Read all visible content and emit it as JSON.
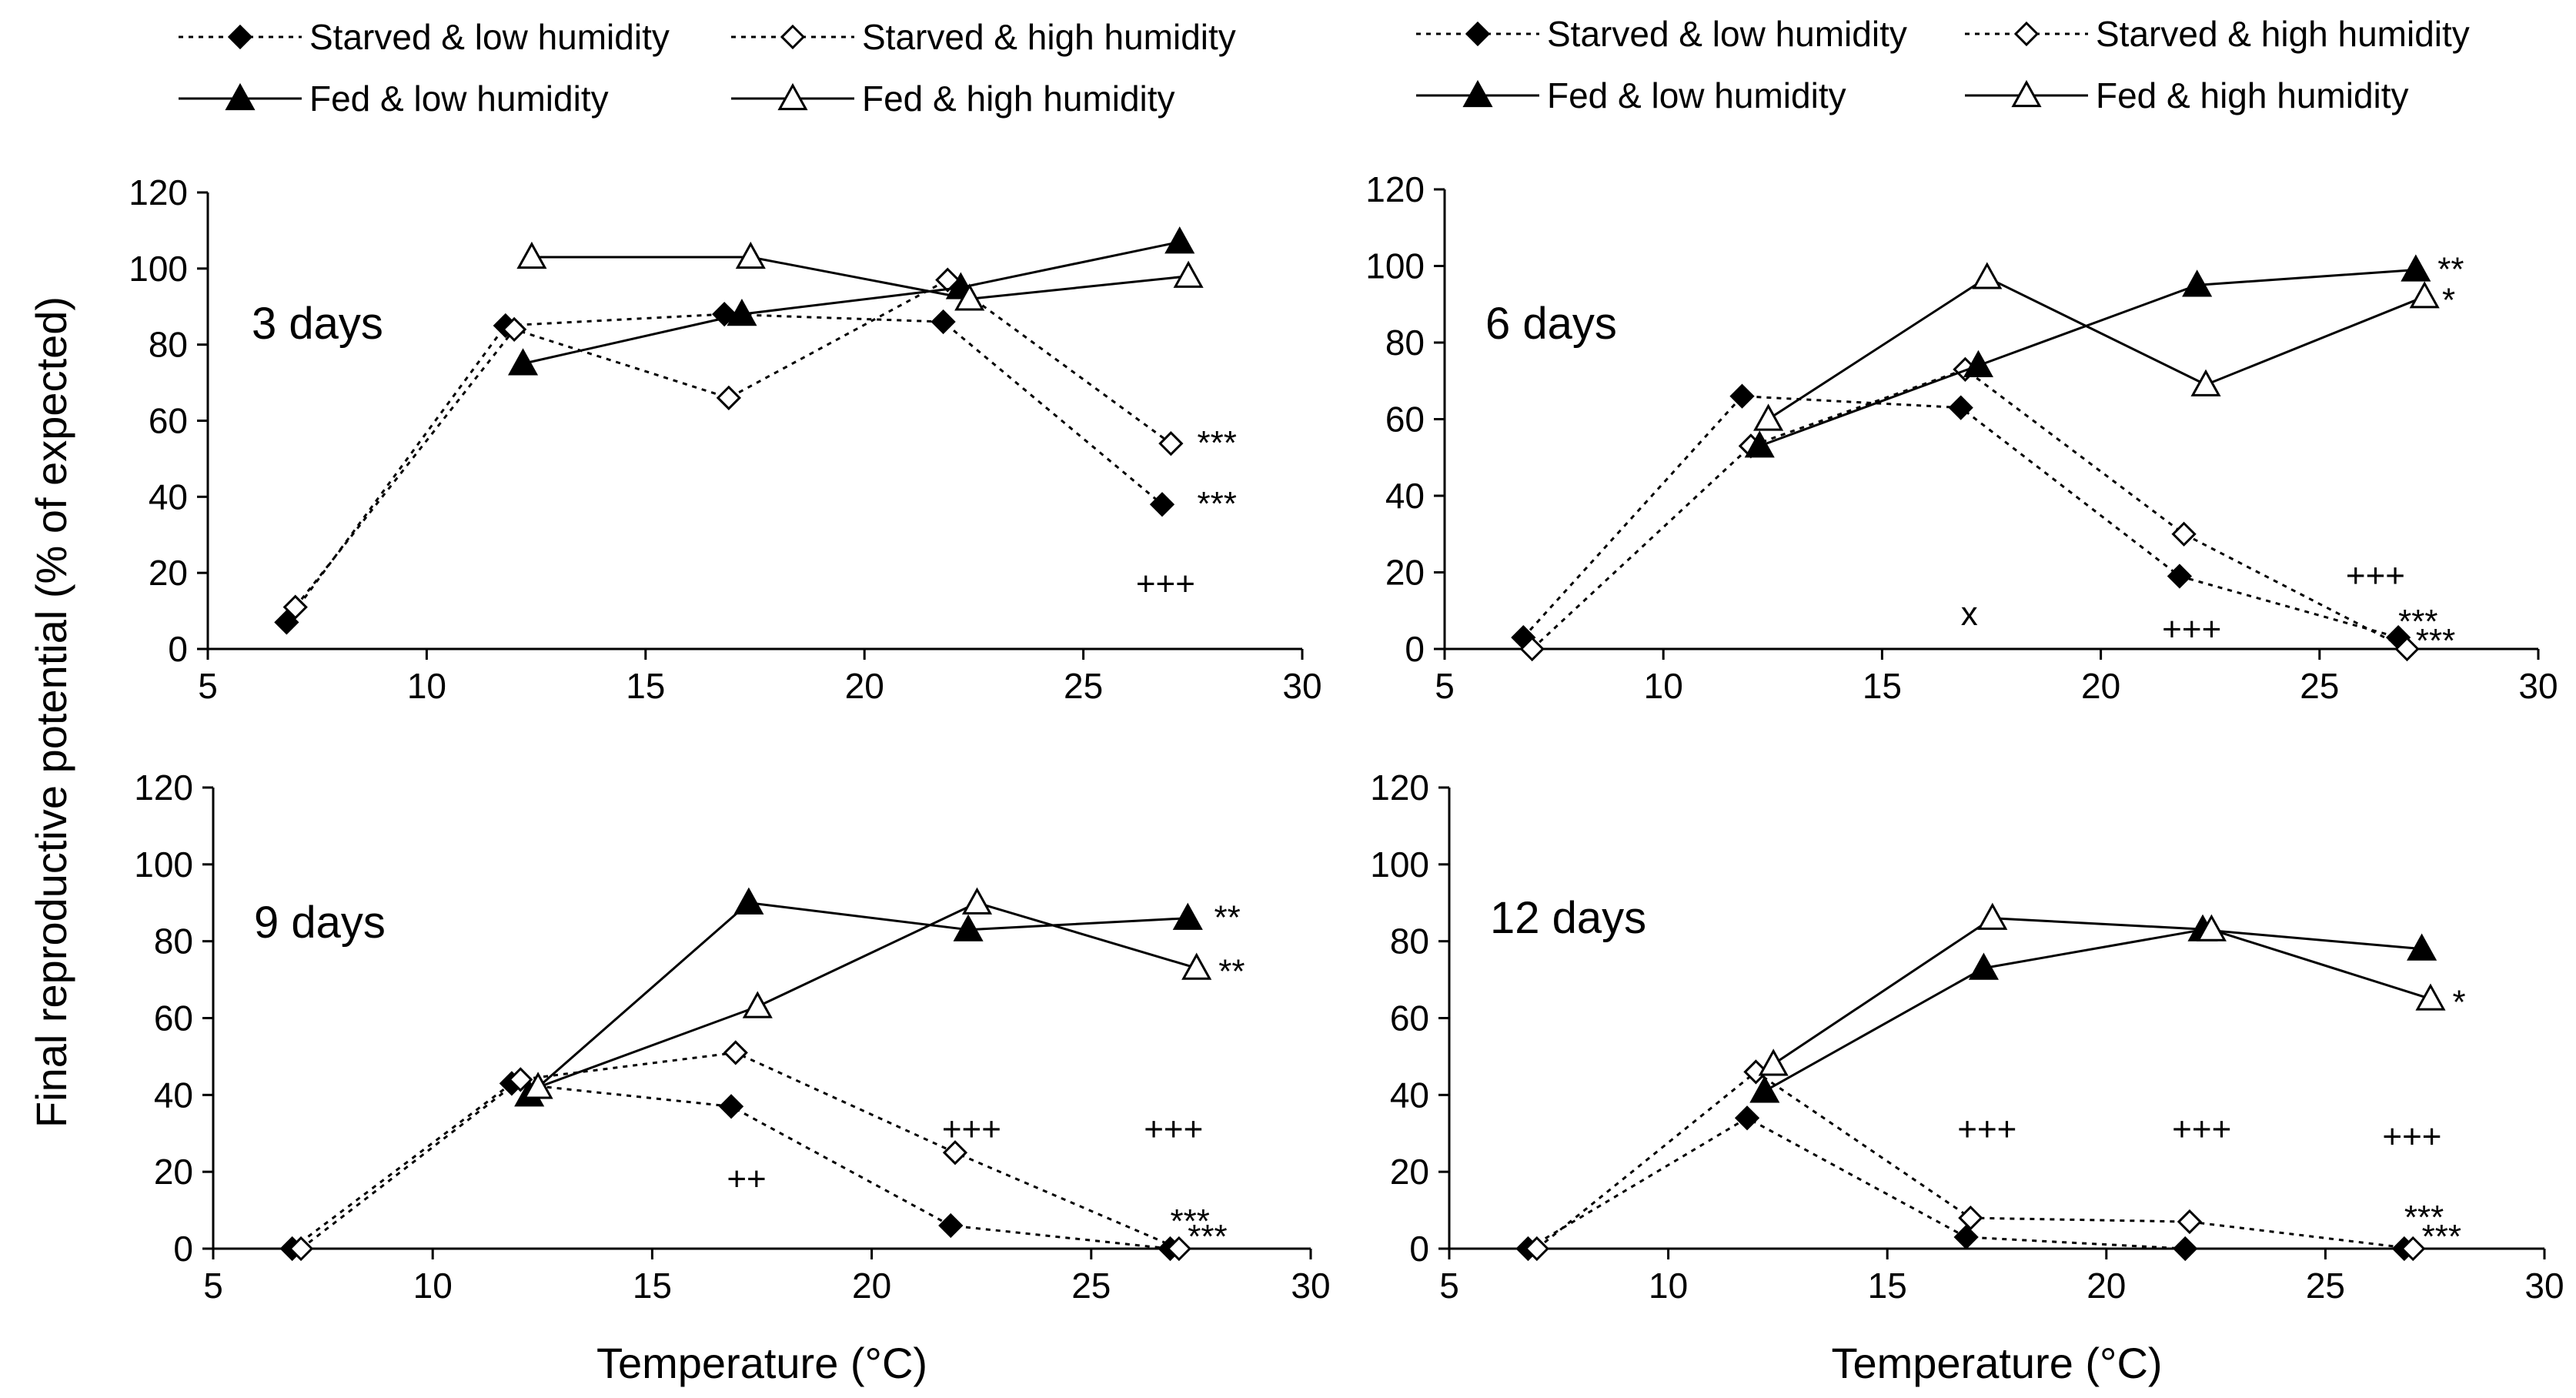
{
  "chart_data": [
    {
      "type": "line",
      "title": "3 days",
      "xlabel": "Temperature (°C)",
      "ylabel": "Final reproductive potential (% of expected)",
      "xlim": [
        5,
        30
      ],
      "ylim": [
        0,
        120
      ],
      "xticks": [
        "5",
        "10",
        "15",
        "20",
        "25",
        "30"
      ],
      "yticks": [
        "0",
        "20",
        "40",
        "60",
        "80",
        "100",
        "120"
      ],
      "series": [
        {
          "name": "Starved & low humidity",
          "x": [
            6.8,
            11.8,
            16.8,
            21.8,
            26.8
          ],
          "values": [
            7,
            85,
            88,
            86,
            38
          ]
        },
        {
          "name": "Starved & high humidity",
          "x": [
            7.0,
            12.0,
            16.9,
            21.9,
            27.0
          ],
          "values": [
            11,
            84,
            66,
            97,
            54
          ]
        },
        {
          "name": "Fed & low humidity",
          "x": [
            12.2,
            17.2,
            22.2,
            27.2
          ],
          "values": [
            75,
            88,
            95,
            107
          ]
        },
        {
          "name": "Fed & high humidity",
          "x": [
            12.4,
            17.4,
            22.4,
            27.4
          ],
          "values": [
            103,
            103,
            92,
            98
          ]
        }
      ],
      "annotations": [
        {
          "text": "***",
          "x": 27.6,
          "y": 54
        },
        {
          "text": "***",
          "x": 27.6,
          "y": 38
        },
        {
          "text": "+++",
          "x": 26.2,
          "y": 17
        }
      ]
    },
    {
      "type": "line",
      "title": "6 days",
      "xlabel": "Temperature (°C)",
      "ylabel": "",
      "xlim": [
        5,
        30
      ],
      "ylim": [
        0,
        120
      ],
      "xticks": [
        "5",
        "10",
        "15",
        "20",
        "25",
        "30"
      ],
      "yticks": [
        "0",
        "20",
        "40",
        "60",
        "80",
        "100",
        "120"
      ],
      "series": [
        {
          "name": "Starved & low humidity",
          "x": [
            6.8,
            11.8,
            16.8,
            21.8,
            26.8
          ],
          "values": [
            3,
            66,
            63,
            19,
            3
          ]
        },
        {
          "name": "Starved & high humidity",
          "x": [
            7.0,
            12.0,
            16.9,
            21.9,
            27.0
          ],
          "values": [
            0,
            53,
            73,
            30,
            0
          ]
        },
        {
          "name": "Fed & low humidity",
          "x": [
            12.2,
            17.2,
            22.2,
            27.2
          ],
          "values": [
            53,
            74,
            95,
            99
          ]
        },
        {
          "name": "Fed & high humidity",
          "x": [
            12.4,
            17.4,
            22.4,
            27.4
          ],
          "values": [
            60,
            97,
            69,
            92
          ]
        }
      ],
      "annotations": [
        {
          "text": "**",
          "x": 27.7,
          "y": 99
        },
        {
          "text": "*",
          "x": 27.8,
          "y": 91
        },
        {
          "text": "x",
          "x": 16.8,
          "y": 9
        },
        {
          "text": "+++",
          "x": 21.4,
          "y": 5
        },
        {
          "text": "+++",
          "x": 25.6,
          "y": 19
        },
        {
          "text": "***",
          "x": 26.8,
          "y": 7
        },
        {
          "text": "***",
          "x": 27.2,
          "y": 2
        }
      ]
    },
    {
      "type": "line",
      "title": "9 days",
      "xlabel": "Temperature (°C)",
      "ylabel": "",
      "xlim": [
        5,
        30
      ],
      "ylim": [
        0,
        120
      ],
      "xticks": [
        "5",
        "10",
        "15",
        "20",
        "25",
        "30"
      ],
      "yticks": [
        "0",
        "20",
        "40",
        "60",
        "80",
        "100",
        "120"
      ],
      "series": [
        {
          "name": "Starved & low humidity",
          "x": [
            6.8,
            11.8,
            16.8,
            21.8,
            26.8
          ],
          "values": [
            0,
            43,
            37,
            6,
            0
          ]
        },
        {
          "name": "Starved & high humidity",
          "x": [
            7.0,
            12.0,
            16.9,
            21.9,
            27.0
          ],
          "values": [
            0,
            44,
            51,
            25,
            0
          ]
        },
        {
          "name": "Fed & low humidity",
          "x": [
            12.2,
            17.2,
            22.2,
            27.2
          ],
          "values": [
            40,
            90,
            83,
            86
          ]
        },
        {
          "name": "Fed & high humidity",
          "x": [
            12.4,
            17.4,
            22.4,
            27.4
          ],
          "values": [
            42,
            63,
            90,
            73
          ]
        }
      ],
      "annotations": [
        {
          "text": "**",
          "x": 27.8,
          "y": 86
        },
        {
          "text": "**",
          "x": 27.9,
          "y": 72
        },
        {
          "text": "+++",
          "x": 21.6,
          "y": 31
        },
        {
          "text": "+++",
          "x": 26.2,
          "y": 31
        },
        {
          "text": "++",
          "x": 16.7,
          "y": 18
        },
        {
          "text": "***",
          "x": 26.8,
          "y": 7
        },
        {
          "text": "***",
          "x": 27.2,
          "y": 3
        }
      ]
    },
    {
      "type": "line",
      "title": "12 days",
      "xlabel": "Temperature (°C)",
      "ylabel": "",
      "xlim": [
        5,
        30
      ],
      "ylim": [
        0,
        120
      ],
      "xticks": [
        "5",
        "10",
        "15",
        "20",
        "25",
        "30"
      ],
      "yticks": [
        "0",
        "20",
        "40",
        "60",
        "80",
        "100",
        "120"
      ],
      "series": [
        {
          "name": "Starved & low humidity",
          "x": [
            6.8,
            11.8,
            16.8,
            21.8,
            26.8
          ],
          "values": [
            0,
            34,
            3,
            0,
            0
          ]
        },
        {
          "name": "Starved & high humidity",
          "x": [
            7.0,
            12.0,
            16.9,
            21.9,
            27.0
          ],
          "values": [
            0,
            46,
            8,
            7,
            0
          ]
        },
        {
          "name": "Fed & low humidity",
          "x": [
            12.2,
            17.2,
            22.2,
            27.2
          ],
          "values": [
            41,
            73,
            83,
            78
          ]
        },
        {
          "name": "Fed & high humidity",
          "x": [
            12.4,
            17.4,
            22.4,
            27.4
          ],
          "values": [
            48,
            86,
            83,
            65
          ]
        }
      ],
      "annotations": [
        {
          "text": "*",
          "x": 27.9,
          "y": 64
        },
        {
          "text": "+++",
          "x": 16.6,
          "y": 31
        },
        {
          "text": "+++",
          "x": 21.5,
          "y": 31
        },
        {
          "text": "+++",
          "x": 26.3,
          "y": 29
        },
        {
          "text": "***",
          "x": 26.8,
          "y": 8
        },
        {
          "text": "***",
          "x": 27.2,
          "y": 3
        }
      ]
    }
  ],
  "legend": {
    "items": [
      {
        "label": "Starved & low humidity",
        "marker": "filled-diamond",
        "line": "dotted"
      },
      {
        "label": "Starved & high humidity",
        "marker": "open-diamond",
        "line": "dotted"
      },
      {
        "label": "Fed & low humidity",
        "marker": "filled-triangle",
        "line": "solid"
      },
      {
        "label": "Fed & high humidity",
        "marker": "open-triangle",
        "line": "solid"
      }
    ]
  },
  "colors": {
    "ink": "#000000",
    "background": "#ffffff"
  }
}
